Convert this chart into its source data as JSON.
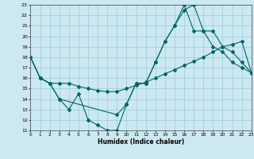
{
  "xlabel": "Humidex (Indice chaleur)",
  "bg_color": "#cce8f0",
  "grid_color": "#99ccd9",
  "line_color": "#006666",
  "xmin": 0,
  "xmax": 23,
  "ymin": 11,
  "ymax": 23,
  "line1_x": [
    0,
    1,
    2,
    3,
    4,
    5,
    6,
    7,
    8,
    9,
    10,
    11,
    12,
    13,
    14,
    15,
    16,
    17,
    18,
    19,
    20,
    21,
    22,
    23
  ],
  "line1_y": [
    18,
    16,
    15.5,
    15.5,
    15.5,
    15.2,
    15.0,
    14.8,
    14.7,
    14.7,
    15.0,
    15.3,
    15.6,
    16.0,
    16.4,
    16.8,
    17.2,
    17.6,
    18.0,
    18.5,
    19.0,
    19.2,
    19.5,
    16.5
  ],
  "line2_x": [
    0,
    1,
    2,
    3,
    4,
    5,
    6,
    7,
    8,
    9,
    10,
    11,
    12,
    13,
    14,
    15,
    16,
    17,
    18,
    19,
    20,
    21,
    22,
    23
  ],
  "line2_y": [
    18,
    16,
    15.5,
    14,
    13,
    14.5,
    12,
    11.5,
    11,
    11,
    13.5,
    15.5,
    15.5,
    17.5,
    19.5,
    21,
    22.5,
    23,
    20.5,
    19,
    18.5,
    17.5,
    17,
    16.5
  ],
  "line3_x": [
    0,
    1,
    2,
    3,
    9,
    10,
    11,
    12,
    13,
    14,
    15,
    16,
    17,
    18,
    19,
    20,
    21,
    22,
    23
  ],
  "line3_y": [
    18,
    16,
    15.5,
    14,
    12.5,
    13.5,
    15.5,
    15.5,
    17.5,
    19.5,
    21,
    23,
    20.5,
    20.5,
    20.5,
    19,
    18.5,
    17.5,
    16.5
  ],
  "xtick_labels": [
    "0",
    "1",
    "2",
    "3",
    "4",
    "5",
    "6",
    "7",
    "8",
    "9",
    "10",
    "11",
    "12",
    "13",
    "14",
    "15",
    "16",
    "17",
    "18",
    "19",
    "20",
    "21",
    "22",
    "23"
  ],
  "ytick_labels": [
    "11",
    "12",
    "13",
    "14",
    "15",
    "16",
    "17",
    "18",
    "19",
    "20",
    "21",
    "22",
    "23"
  ],
  "figwidth": 3.2,
  "figheight": 2.0,
  "dpi": 100
}
